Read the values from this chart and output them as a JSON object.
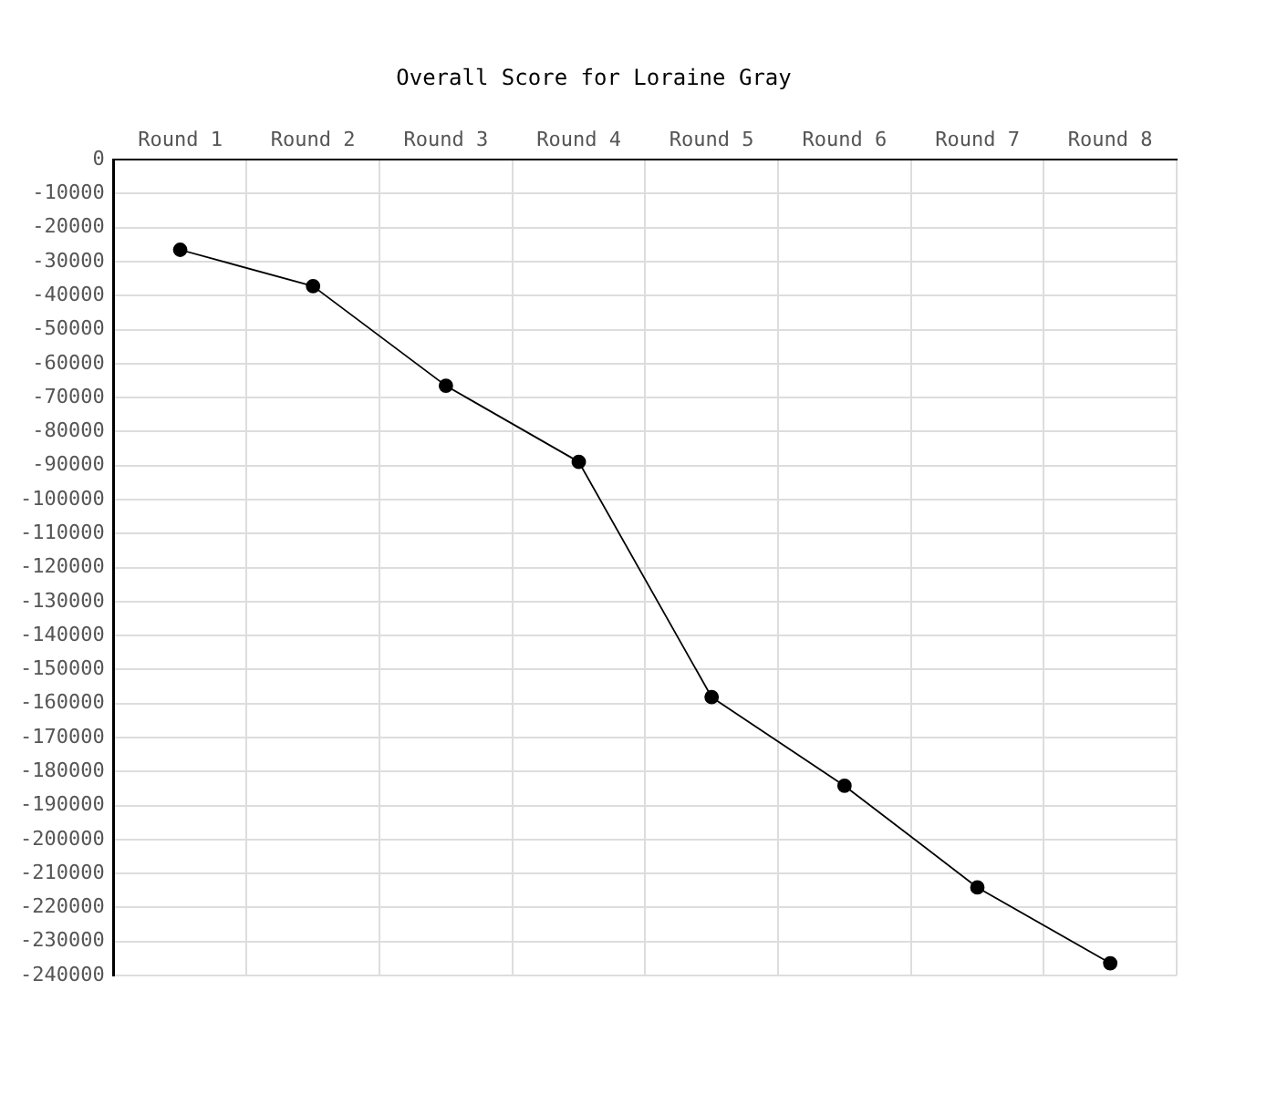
{
  "chart_data": {
    "type": "line",
    "title": "Overall Score for Loraine Gray",
    "categories": [
      "Round 1",
      "Round 2",
      "Round 3",
      "Round 4",
      "Round 5",
      "Round 6",
      "Round 7",
      "Round 8"
    ],
    "series": [
      {
        "color": "#000000",
        "values": [
          -26500,
          -37200,
          -66500,
          -88900,
          -158100,
          -184200,
          -214100,
          -236400
        ]
      }
    ],
    "ylim": [
      -240000,
      0
    ],
    "yticks": [
      0,
      -10000,
      -20000,
      -30000,
      -40000,
      -50000,
      -60000,
      -70000,
      -80000,
      -90000,
      -100000,
      -110000,
      -120000,
      -130000,
      -140000,
      -150000,
      -160000,
      -170000,
      -180000,
      -190000,
      -200000,
      -210000,
      -220000,
      -230000,
      -240000
    ],
    "grid": true,
    "marker": "circle",
    "line_style": "solid"
  }
}
